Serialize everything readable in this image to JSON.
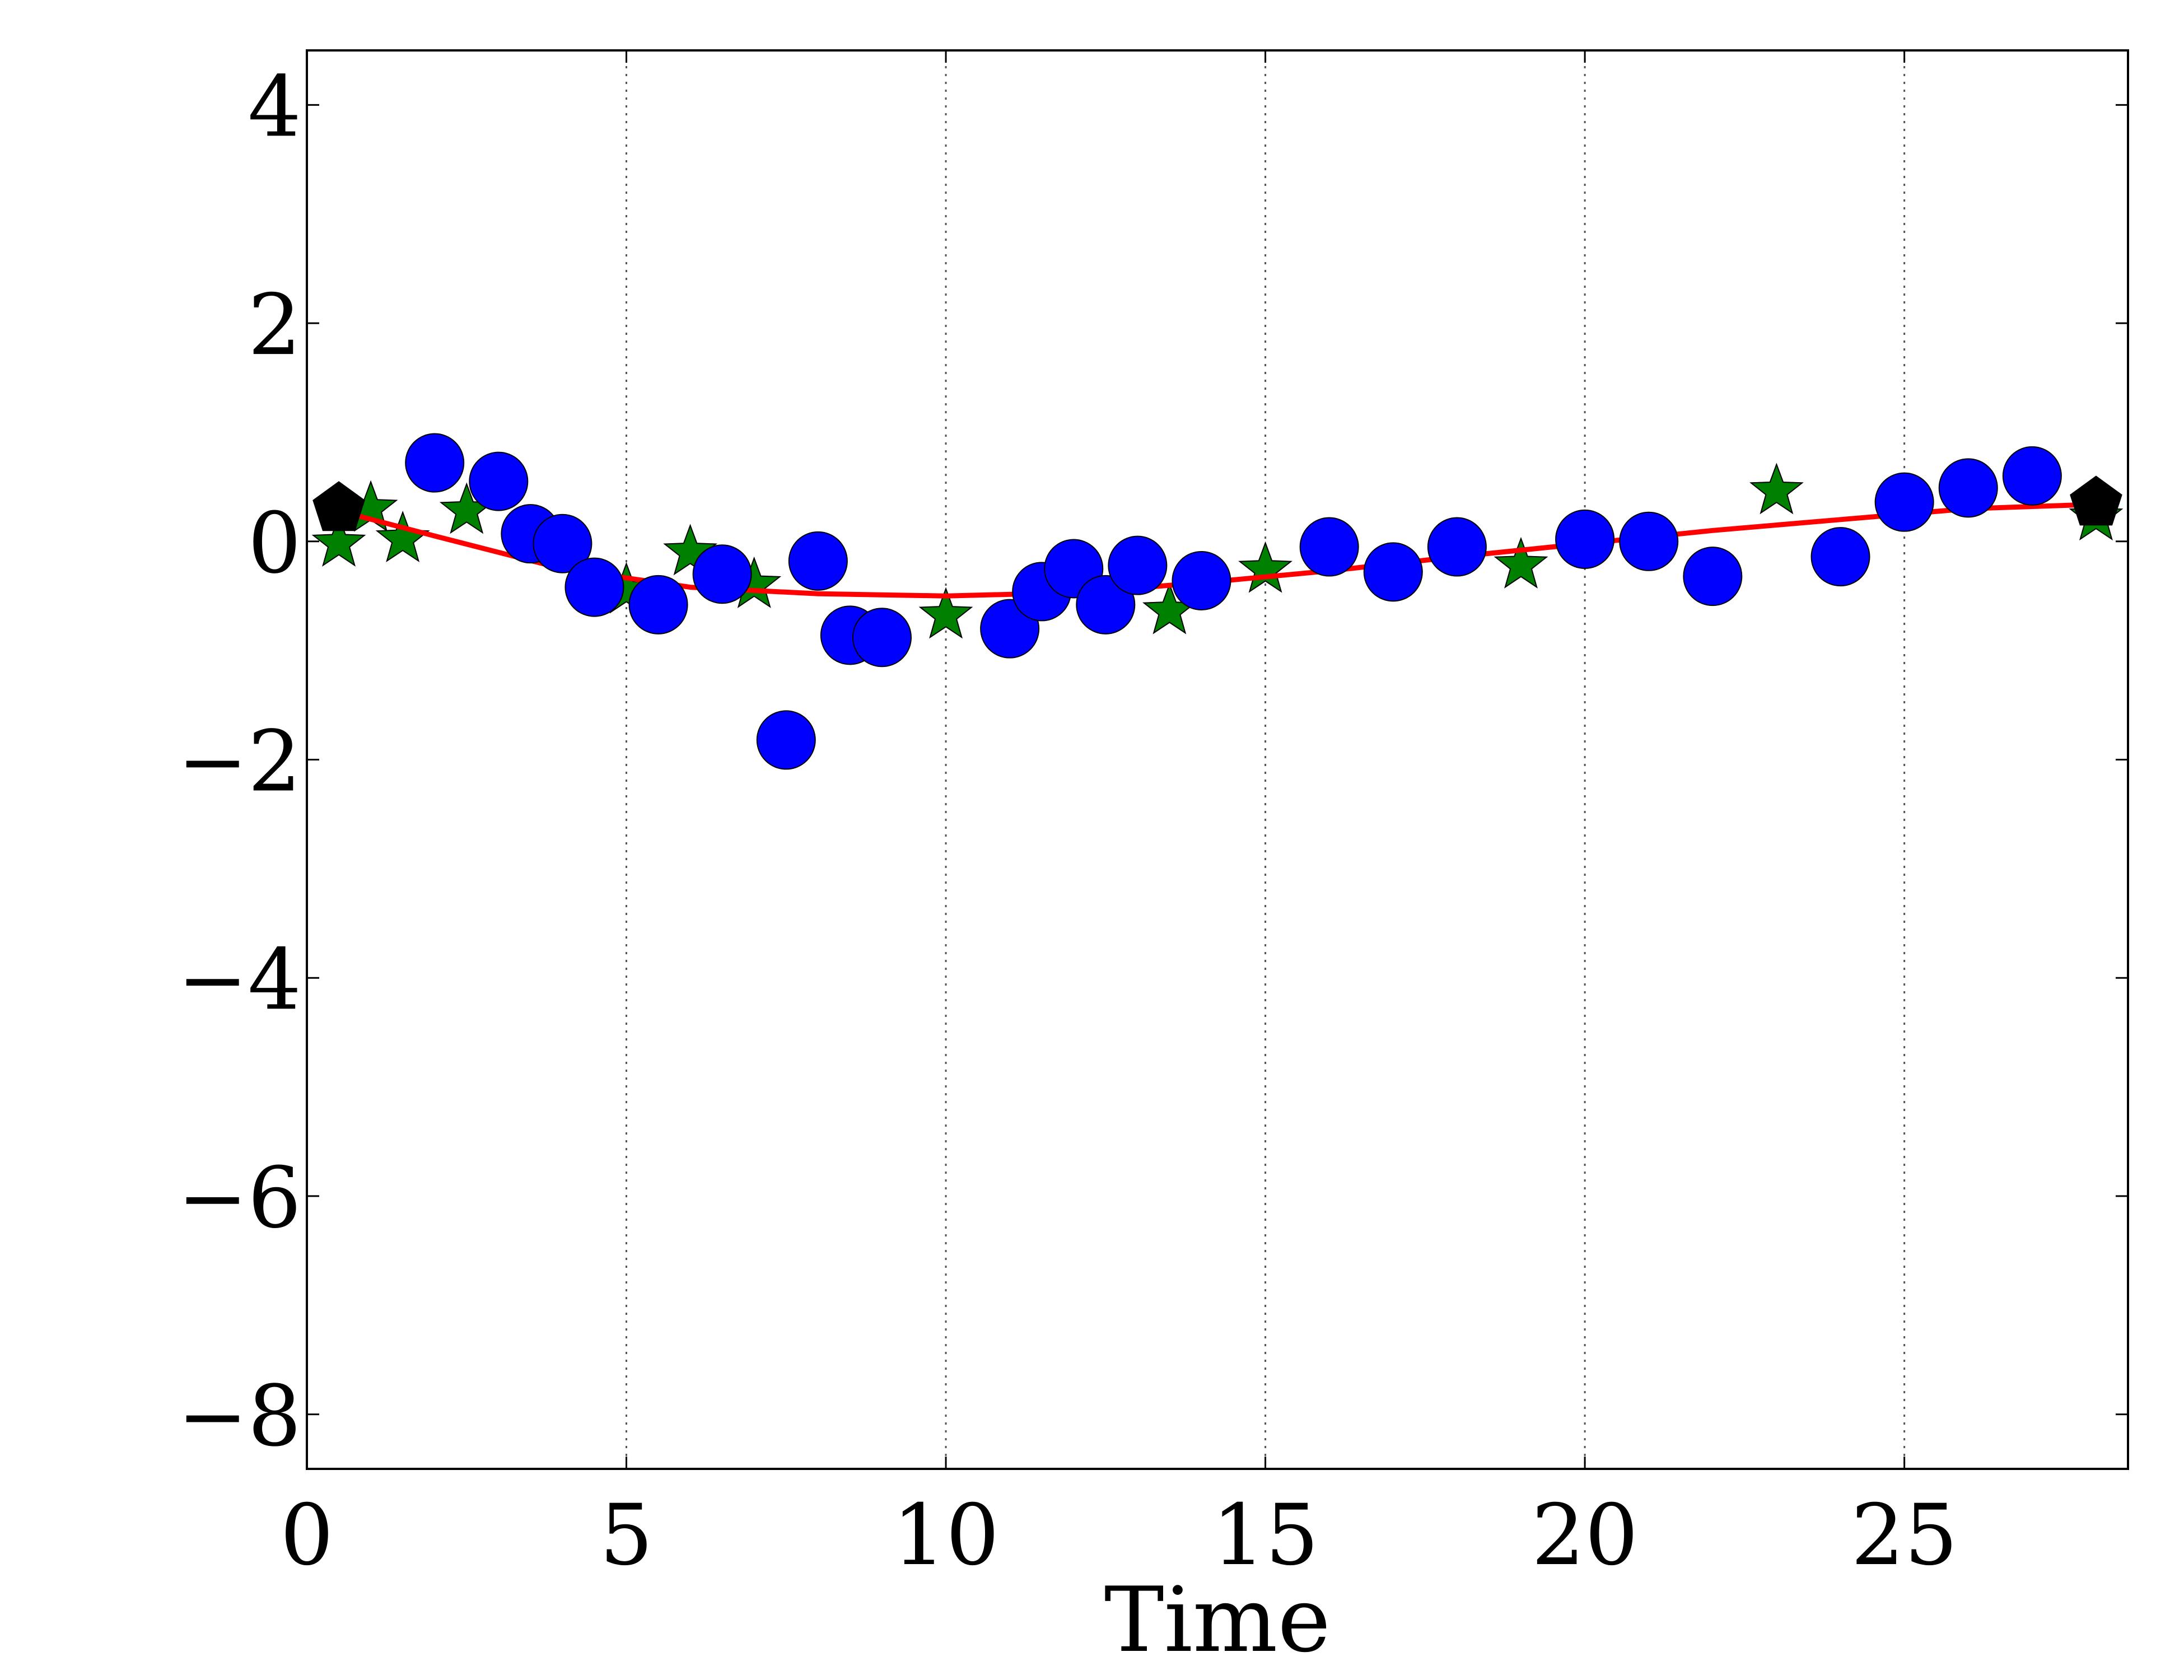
{
  "chart_data": {
    "type": "scatter",
    "title": "",
    "xlabel": "Time",
    "ylabel": "",
    "xlim": [
      0,
      28.5
    ],
    "ylim": [
      -8.5,
      4.5
    ],
    "x_ticks": [
      0,
      5,
      10,
      15,
      20,
      25
    ],
    "x_tick_labels": [
      "0",
      "5",
      "10",
      "15",
      "20",
      "25"
    ],
    "y_ticks": [
      4,
      2,
      0,
      -2,
      -4,
      -6,
      -8
    ],
    "y_tick_labels": [
      "4",
      "2",
      "0",
      "−2",
      "−4",
      "−6",
      "−8"
    ],
    "grid": "vertical dotted lines at x ticks",
    "legend": "none",
    "series": [
      {
        "marker": "circle",
        "color": "#0000ff",
        "x": [
          2,
          3,
          3.5,
          4,
          4.5,
          5.5,
          6.5,
          7.5,
          8,
          8.5,
          9,
          11,
          11.5,
          12,
          12.5,
          13,
          14,
          16,
          17,
          18,
          20,
          21,
          22,
          24,
          25,
          26,
          27
        ],
        "y": [
          0.72,
          0.55,
          0.07,
          -0.02,
          -0.42,
          -0.58,
          -0.3,
          -1.82,
          -0.18,
          -0.86,
          -0.88,
          -0.8,
          -0.46,
          -0.25,
          -0.58,
          -0.22,
          -0.36,
          -0.05,
          -0.28,
          -0.05,
          0.02,
          0,
          -0.32,
          -0.14,
          0.36,
          0.49,
          0.6
        ]
      },
      {
        "marker": "star",
        "color": "#008000",
        "x": [
          0.5,
          1,
          1.5,
          2.5,
          5,
          6,
          7,
          10,
          13.5,
          15,
          19,
          23,
          28
        ],
        "y": [
          -0.02,
          0.3,
          0.02,
          0.28,
          -0.45,
          -0.1,
          -0.4,
          -0.68,
          -0.64,
          -0.26,
          -0.22,
          0.46,
          0.22
        ]
      },
      {
        "marker": "pentagon",
        "color": "#000000",
        "x": [
          0.5,
          28
        ],
        "y": [
          0.3,
          0.35
        ]
      },
      {
        "marker": "line",
        "color": "#ff0000",
        "x": [
          0.5,
          2,
          4,
          6,
          8,
          10,
          12,
          14,
          16,
          18,
          20,
          22,
          24,
          26,
          28
        ],
        "y": [
          0.28,
          0.05,
          -0.25,
          -0.42,
          -0.48,
          -0.5,
          -0.47,
          -0.38,
          -0.27,
          -0.14,
          -0.02,
          0.1,
          0.2,
          0.3,
          0.34
        ]
      }
    ]
  }
}
